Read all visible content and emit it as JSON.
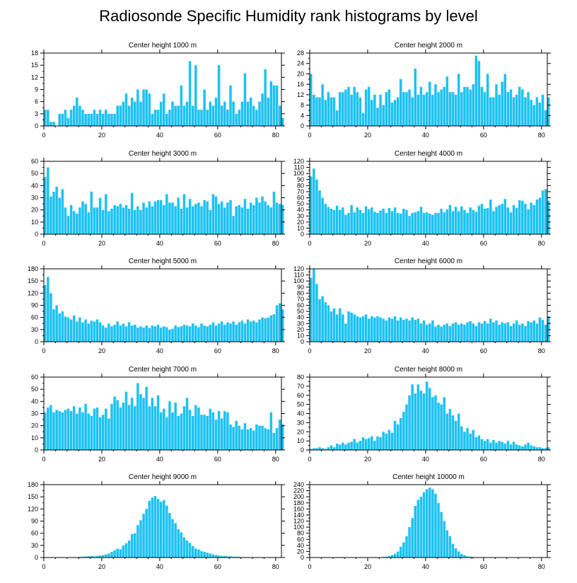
{
  "figure": {
    "title": "Radiosonde Specific Humidity rank histograms by level",
    "bar_color": "#1cc2f2"
  },
  "chart_data": [
    {
      "type": "bar",
      "title": "Center height 1000 m",
      "xlabel": "",
      "ylabel": "",
      "xlim": [
        0,
        82
      ],
      "ylim": [
        0,
        18
      ],
      "xticks": [
        0,
        20,
        40,
        60,
        80
      ],
      "yticks": [
        0,
        3,
        6,
        9,
        12,
        15,
        18
      ],
      "x_start": 0,
      "values": [
        4,
        4,
        1,
        1,
        0,
        3,
        3,
        4,
        2,
        4,
        5,
        7,
        5,
        4,
        3,
        3,
        3,
        4,
        3,
        4,
        3,
        4,
        3,
        3,
        3,
        5,
        5,
        6,
        8,
        5,
        7,
        6,
        9,
        6,
        9,
        9,
        8,
        3,
        4,
        4,
        6,
        8,
        3,
        4,
        6,
        5,
        5,
        10,
        5,
        6,
        16,
        5,
        15,
        4,
        4,
        9,
        4,
        6,
        5,
        7,
        15,
        5,
        6,
        4,
        10,
        6,
        3,
        4,
        6,
        13,
        6,
        7,
        5,
        4,
        6,
        8,
        14,
        7,
        11,
        10,
        10,
        5,
        2
      ]
    },
    {
      "type": "bar",
      "title": "Center height 2000 m",
      "xlabel": "",
      "ylabel": "",
      "xlim": [
        0,
        82
      ],
      "ylim": [
        0,
        28
      ],
      "xticks": [
        0,
        20,
        40,
        60,
        80
      ],
      "yticks": [
        0,
        4,
        8,
        12,
        16,
        20,
        24,
        28
      ],
      "x_start": 0,
      "values": [
        20,
        12,
        11,
        11,
        16,
        10,
        13,
        11,
        11,
        6,
        13,
        13,
        14,
        15,
        12,
        15,
        13,
        11,
        5,
        14,
        15,
        10,
        12,
        7,
        12,
        8,
        13,
        14,
        9,
        10,
        11,
        18,
        13,
        13,
        14,
        11,
        22,
        12,
        15,
        12,
        13,
        17,
        12,
        16,
        13,
        14,
        15,
        19,
        13,
        13,
        12,
        20,
        13,
        15,
        15,
        14,
        16,
        27,
        25,
        15,
        13,
        20,
        11,
        11,
        16,
        12,
        17,
        20,
        13,
        14,
        11,
        12,
        15,
        14,
        11,
        13,
        10,
        8,
        11,
        9,
        12,
        6,
        11
      ]
    },
    {
      "type": "bar",
      "title": "Center height 3000 m",
      "xlabel": "",
      "ylabel": "",
      "xlim": [
        0,
        82
      ],
      "ylim": [
        0,
        60
      ],
      "xticks": [
        0,
        20,
        40,
        60,
        80
      ],
      "yticks": [
        0,
        10,
        20,
        30,
        40,
        50,
        60
      ],
      "x_start": 0,
      "values": [
        47,
        55,
        31,
        35,
        39,
        30,
        37,
        22,
        15,
        24,
        19,
        17,
        22,
        27,
        25,
        18,
        35,
        22,
        22,
        30,
        20,
        33,
        19,
        21,
        24,
        23,
        25,
        22,
        24,
        21,
        34,
        20,
        23,
        20,
        26,
        22,
        27,
        23,
        27,
        28,
        28,
        24,
        33,
        26,
        26,
        23,
        30,
        21,
        33,
        22,
        29,
        23,
        25,
        26,
        23,
        28,
        27,
        20,
        33,
        31,
        25,
        27,
        22,
        26,
        28,
        15,
        23,
        24,
        22,
        29,
        21,
        26,
        24,
        30,
        26,
        31,
        27,
        24,
        22,
        35,
        26,
        25,
        24
      ]
    },
    {
      "type": "bar",
      "title": "Center height 4000 m",
      "xlabel": "",
      "ylabel": "",
      "xlim": [
        0,
        82
      ],
      "ylim": [
        0,
        120
      ],
      "xticks": [
        0,
        20,
        40,
        60,
        80
      ],
      "yticks": [
        0,
        10,
        20,
        30,
        40,
        50,
        60,
        70,
        80,
        90,
        100,
        110,
        120
      ],
      "x_start": 0,
      "values": [
        95,
        108,
        90,
        72,
        60,
        50,
        45,
        42,
        40,
        47,
        40,
        44,
        32,
        35,
        48,
        36,
        44,
        40,
        35,
        46,
        41,
        44,
        37,
        35,
        39,
        42,
        35,
        43,
        38,
        44,
        35,
        34,
        42,
        40,
        30,
        35,
        36,
        38,
        45,
        35,
        36,
        34,
        32,
        35,
        35,
        42,
        36,
        41,
        48,
        38,
        45,
        38,
        46,
        40,
        35,
        44,
        40,
        37,
        47,
        50,
        42,
        43,
        57,
        38,
        45,
        48,
        50,
        58,
        44,
        36,
        48,
        43,
        56,
        55,
        50,
        41,
        52,
        48,
        57,
        60,
        72,
        74,
        55
      ]
    },
    {
      "type": "bar",
      "title": "Center height 5000 m",
      "xlabel": "",
      "ylabel": "",
      "xlim": [
        0,
        82
      ],
      "ylim": [
        0,
        180
      ],
      "xticks": [
        0,
        20,
        40,
        60,
        80
      ],
      "yticks": [
        0,
        30,
        60,
        90,
        120,
        150,
        180
      ],
      "x_start": 0,
      "values": [
        140,
        160,
        120,
        80,
        90,
        70,
        75,
        62,
        60,
        55,
        65,
        50,
        60,
        48,
        55,
        45,
        52,
        50,
        55,
        48,
        40,
        35,
        45,
        38,
        42,
        50,
        40,
        45,
        38,
        48,
        40,
        42,
        35,
        38,
        35,
        40,
        34,
        40,
        38,
        42,
        35,
        38,
        36,
        30,
        32,
        40,
        36,
        38,
        42,
        40,
        38,
        45,
        40,
        36,
        45,
        40,
        38,
        42,
        48,
        40,
        45,
        50,
        42,
        48,
        45,
        50,
        42,
        48,
        52,
        45,
        55,
        50,
        52,
        48,
        55,
        60,
        58,
        60,
        65,
        68,
        90,
        95,
        80
      ]
    },
    {
      "type": "bar",
      "title": "Center height 6000 m",
      "xlabel": "",
      "ylabel": "",
      "xlim": [
        0,
        82
      ],
      "ylim": [
        0,
        120
      ],
      "xticks": [
        0,
        20,
        40,
        60,
        80
      ],
      "yticks": [
        0,
        10,
        20,
        30,
        40,
        50,
        60,
        70,
        80,
        90,
        100,
        110,
        120
      ],
      "x_start": 0,
      "values": [
        105,
        120,
        95,
        70,
        75,
        65,
        60,
        50,
        55,
        45,
        55,
        45,
        30,
        50,
        48,
        45,
        42,
        40,
        42,
        45,
        38,
        42,
        40,
        42,
        40,
        38,
        35,
        40,
        38,
        42,
        35,
        40,
        36,
        38,
        35,
        40,
        36,
        38,
        30,
        35,
        28,
        30,
        35,
        25,
        28,
        25,
        28,
        30,
        26,
        30,
        32,
        28,
        30,
        28,
        32,
        34,
        30,
        26,
        32,
        30,
        34,
        30,
        38,
        32,
        35,
        28,
        32,
        30,
        32,
        26,
        30,
        35,
        28,
        30,
        26,
        34,
        32,
        35,
        30,
        40,
        36,
        28,
        42
      ]
    },
    {
      "type": "bar",
      "title": "Center height 7000 m",
      "xlabel": "",
      "ylabel": "",
      "xlim": [
        0,
        82
      ],
      "ylim": [
        0,
        60
      ],
      "xticks": [
        0,
        20,
        40,
        60,
        80
      ],
      "yticks": [
        0,
        10,
        20,
        30,
        40,
        50,
        60
      ],
      "x_start": 0,
      "values": [
        31,
        35,
        37,
        31,
        33,
        32,
        31,
        33,
        34,
        32,
        36,
        30,
        35,
        31,
        38,
        30,
        28,
        34,
        35,
        27,
        29,
        34,
        26,
        38,
        44,
        41,
        35,
        39,
        48,
        37,
        43,
        36,
        55,
        46,
        43,
        52,
        36,
        43,
        36,
        45,
        31,
        34,
        27,
        40,
        31,
        39,
        28,
        30,
        36,
        43,
        33,
        28,
        37,
        35,
        29,
        29,
        28,
        34,
        31,
        25,
        32,
        26,
        32,
        31,
        21,
        19,
        24,
        20,
        17,
        22,
        17,
        18,
        16,
        21,
        20,
        20,
        18,
        17,
        31,
        14,
        18,
        25,
        21
      ]
    },
    {
      "type": "bar",
      "title": "Center height 8000 m",
      "xlabel": "",
      "ylabel": "",
      "xlim": [
        0,
        82
      ],
      "ylim": [
        0,
        80
      ],
      "xticks": [
        0,
        20,
        40,
        60,
        80
      ],
      "yticks": [
        0,
        10,
        20,
        30,
        40,
        50,
        60,
        70,
        80
      ],
      "x_start": 0,
      "values": [
        1,
        2,
        2,
        3,
        2,
        1,
        3,
        5,
        3,
        7,
        6,
        8,
        6,
        8,
        9,
        12,
        8,
        10,
        14,
        12,
        13,
        15,
        10,
        15,
        14,
        20,
        18,
        22,
        19,
        32,
        28,
        35,
        42,
        50,
        60,
        72,
        62,
        72,
        65,
        62,
        75,
        68,
        58,
        60,
        52,
        50,
        58,
        40,
        45,
        38,
        32,
        40,
        26,
        20,
        24,
        18,
        22,
        14,
        16,
        12,
        10,
        12,
        8,
        11,
        8,
        10,
        9,
        7,
        10,
        6,
        9,
        6,
        5,
        4,
        6,
        8,
        5,
        4,
        3,
        3,
        2,
        2,
        3
      ]
    },
    {
      "type": "bar",
      "title": "Center height 9000 m",
      "xlabel": "",
      "ylabel": "",
      "xlim": [
        0,
        82
      ],
      "ylim": [
        0,
        180
      ],
      "xticks": [
        0,
        20,
        40,
        60,
        80
      ],
      "yticks": [
        0,
        30,
        60,
        90,
        120,
        150,
        180
      ],
      "x_start": 0,
      "values": [
        0,
        0,
        0,
        0,
        0,
        0,
        0,
        0,
        0,
        0,
        1,
        1,
        2,
        2,
        3,
        3,
        4,
        3,
        4,
        5,
        6,
        8,
        10,
        14,
        18,
        22,
        20,
        30,
        35,
        42,
        58,
        60,
        80,
        92,
        108,
        120,
        140,
        148,
        152,
        145,
        138,
        142,
        128,
        110,
        95,
        85,
        70,
        62,
        50,
        42,
        36,
        28,
        22,
        20,
        16,
        14,
        12,
        10,
        8,
        6,
        5,
        4,
        4,
        3,
        3,
        2,
        2,
        2,
        1,
        1,
        1,
        0,
        0,
        0,
        0,
        0,
        0,
        0,
        0,
        0,
        0,
        0,
        0
      ]
    },
    {
      "type": "bar",
      "title": "Center height 10000 m",
      "xlabel": "",
      "ylabel": "",
      "xlim": [
        0,
        82
      ],
      "ylim": [
        0,
        240
      ],
      "xticks": [
        0,
        20,
        40,
        60,
        80
      ],
      "yticks": [
        0,
        20,
        40,
        60,
        80,
        100,
        120,
        140,
        160,
        180,
        200,
        220,
        240
      ],
      "x_start": 0,
      "values": [
        0,
        0,
        0,
        0,
        0,
        0,
        0,
        0,
        0,
        0,
        0,
        0,
        0,
        0,
        0,
        0,
        0,
        0,
        0,
        0,
        0,
        0,
        0,
        0,
        1,
        2,
        3,
        5,
        8,
        12,
        20,
        35,
        50,
        70,
        100,
        130,
        170,
        190,
        200,
        215,
        225,
        230,
        225,
        210,
        180,
        150,
        120,
        90,
        70,
        45,
        30,
        20,
        12,
        8,
        4,
        3,
        2,
        1,
        0,
        0,
        0,
        0,
        0,
        0,
        0,
        0,
        0,
        0,
        0,
        0,
        0,
        0,
        0,
        0,
        0,
        0,
        0,
        0,
        0,
        0,
        0,
        0,
        0
      ]
    }
  ]
}
